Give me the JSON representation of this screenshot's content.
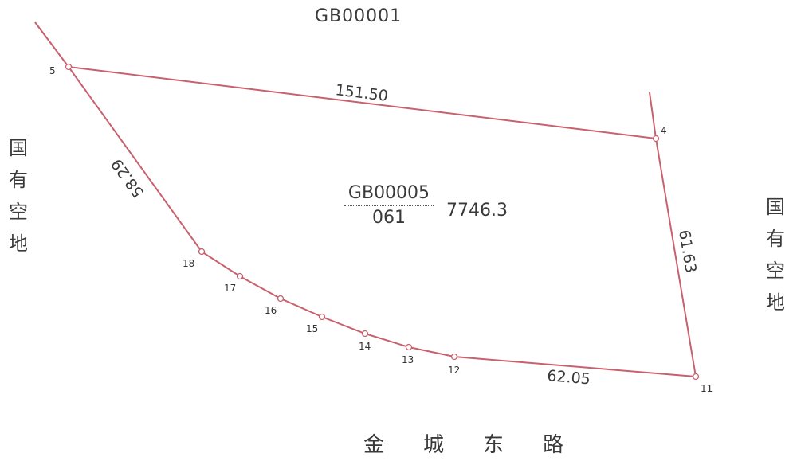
{
  "top_parcel": "GB00001",
  "left_land": [
    "国",
    "有",
    "空",
    "地"
  ],
  "right_land": [
    "国",
    "有",
    "空",
    "地"
  ],
  "road": [
    "金",
    "城",
    "东",
    "路"
  ],
  "parcel": {
    "code": "GB00005",
    "number": "061",
    "area": "7746.3"
  },
  "edge_lengths": {
    "north": "151.50",
    "west": "58.29",
    "east": "61.63",
    "south": "62.05"
  },
  "points": [
    "5",
    "4",
    "11",
    "12",
    "13",
    "14",
    "15",
    "16",
    "17",
    "18"
  ],
  "colors": {
    "boundary": "#c8616d",
    "text": "#3a3a3a"
  }
}
